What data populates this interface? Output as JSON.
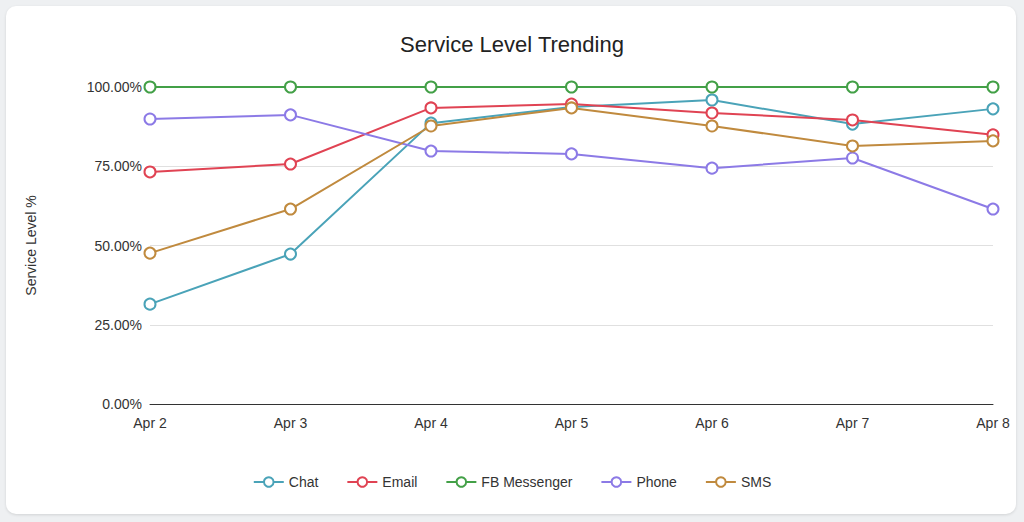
{
  "chart_data": {
    "type": "line",
    "title": "Service Level Trending",
    "y_label": "Service Level %",
    "categories": [
      "Apr 2",
      "Apr 3",
      "Apr 4",
      "Apr 5",
      "Apr 6",
      "Apr 7",
      "Apr 8"
    ],
    "series": [
      {
        "name": "Chat",
        "color": "#4aa3b8",
        "values": [
          31.5,
          47.3,
          88.6,
          93.7,
          95.9,
          88.3,
          93.1
        ]
      },
      {
        "name": "Email",
        "color": "#e04353",
        "values": [
          73.2,
          75.7,
          93.4,
          94.6,
          91.8,
          89.6,
          84.9
        ]
      },
      {
        "name": "FB Messenger",
        "color": "#43a047",
        "values": [
          100,
          100,
          100,
          100,
          100,
          100,
          100
        ]
      },
      {
        "name": "Phone",
        "color": "#8c7ae6",
        "values": [
          89.9,
          91.2,
          79.8,
          78.9,
          74.4,
          77.6,
          61.5
        ]
      },
      {
        "name": "SMS",
        "color": "#c08a3e",
        "values": [
          47.6,
          61.5,
          87.7,
          93.4,
          87.7,
          81.4,
          83.0
        ]
      }
    ],
    "ylim": [
      0,
      100
    ],
    "yticks": [
      {
        "value": 0,
        "label": "0.00%"
      },
      {
        "value": 25,
        "label": "25.00%"
      },
      {
        "value": 50,
        "label": "50.00%"
      },
      {
        "value": 75,
        "label": "75.00%"
      },
      {
        "value": 100,
        "label": "100.00%"
      }
    ],
    "grid": true,
    "legend": "bottom",
    "marker": "circle"
  }
}
